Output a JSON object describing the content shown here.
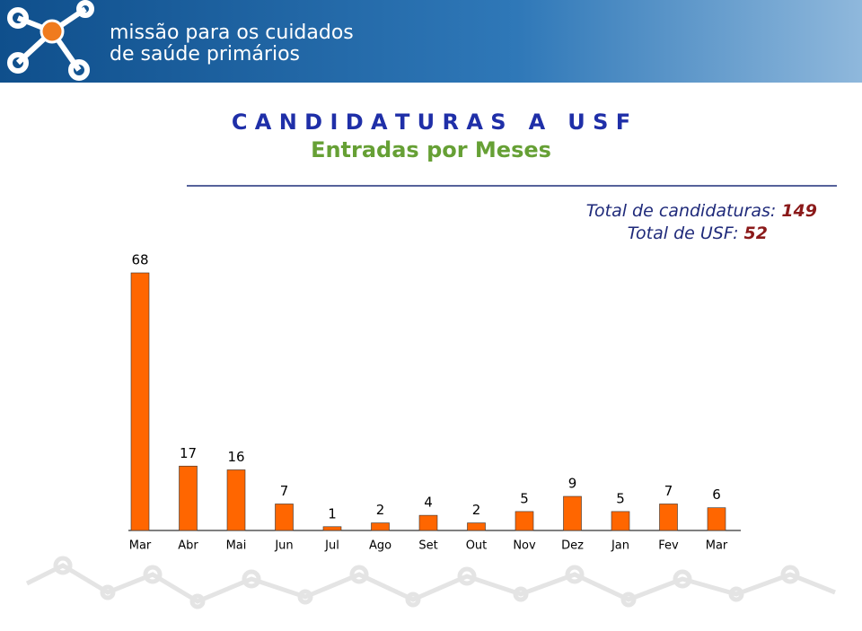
{
  "header": {
    "logo_line1": "missão para os cuidados",
    "logo_line2": "de saúde primários"
  },
  "chart_data": {
    "type": "bar",
    "title": "C A N D I D A T U R A S   A   U S F",
    "subtitle": "Entradas por Meses",
    "totals": [
      {
        "label": "Total de candidaturas:",
        "value": 149
      },
      {
        "label": "Total de USF:",
        "value": 52
      }
    ],
    "categories": [
      "Mar",
      "Abr",
      "Mai",
      "Jun",
      "Jul",
      "Ago",
      "Set",
      "Out",
      "Nov",
      "Dez",
      "Jan",
      "Fev",
      "Mar"
    ],
    "values": [
      68,
      17,
      16,
      7,
      1,
      2,
      4,
      2,
      5,
      9,
      5,
      7,
      6
    ],
    "color": "#ff6600"
  }
}
